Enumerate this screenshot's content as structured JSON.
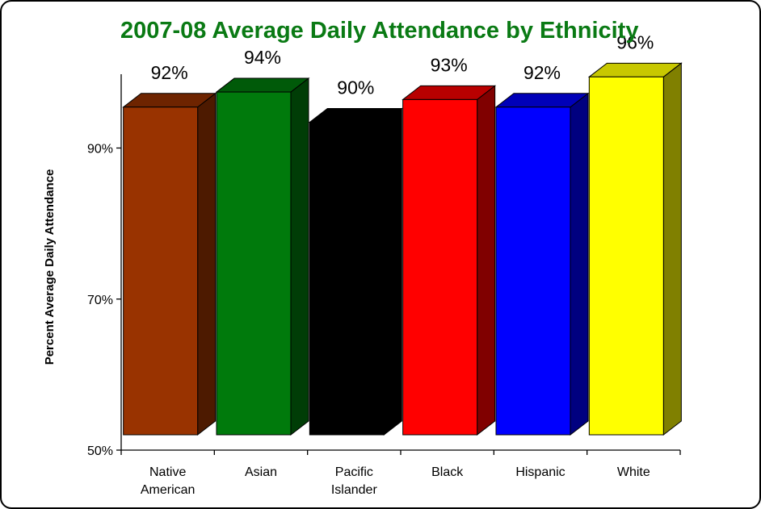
{
  "chart_data": {
    "type": "bar",
    "title": "2007-08 Average Daily Attendance by Ethnicity",
    "ylabel": "Percent Average Daily Attendance",
    "xlabel": "",
    "ylim": [
      50,
      100
    ],
    "yticks": [
      {
        "value": 50,
        "label": "50%"
      },
      {
        "value": 70,
        "label": "70%"
      },
      {
        "value": 90,
        "label": "90%"
      }
    ],
    "grid": false,
    "legend": "none",
    "style": "3d",
    "categories": [
      {
        "lines": [
          "Native",
          "American"
        ]
      },
      {
        "lines": [
          "Asian"
        ]
      },
      {
        "lines": [
          "Pacific",
          "Islander"
        ]
      },
      {
        "lines": [
          "Black"
        ]
      },
      {
        "lines": [
          "Hispanic"
        ]
      },
      {
        "lines": [
          "White"
        ]
      }
    ],
    "values": [
      92,
      94,
      90,
      93,
      92,
      96
    ],
    "value_labels": [
      "92%",
      "94%",
      "90%",
      "93%",
      "92%",
      "96%"
    ],
    "colors": [
      {
        "front": "#993300",
        "side": "#4d1a00",
        "top": "#6e2400"
      },
      {
        "front": "#007a0c",
        "side": "#003d06",
        "top": "#005a09"
      },
      {
        "front": "#000000",
        "side": "#000000",
        "top": "#000000"
      },
      {
        "front": "#ff0000",
        "side": "#800000",
        "top": "#b80000"
      },
      {
        "front": "#0000ff",
        "side": "#000080",
        "top": "#0000b8"
      },
      {
        "front": "#ffff00",
        "side": "#808000",
        "top": "#c8c800"
      }
    ]
  }
}
